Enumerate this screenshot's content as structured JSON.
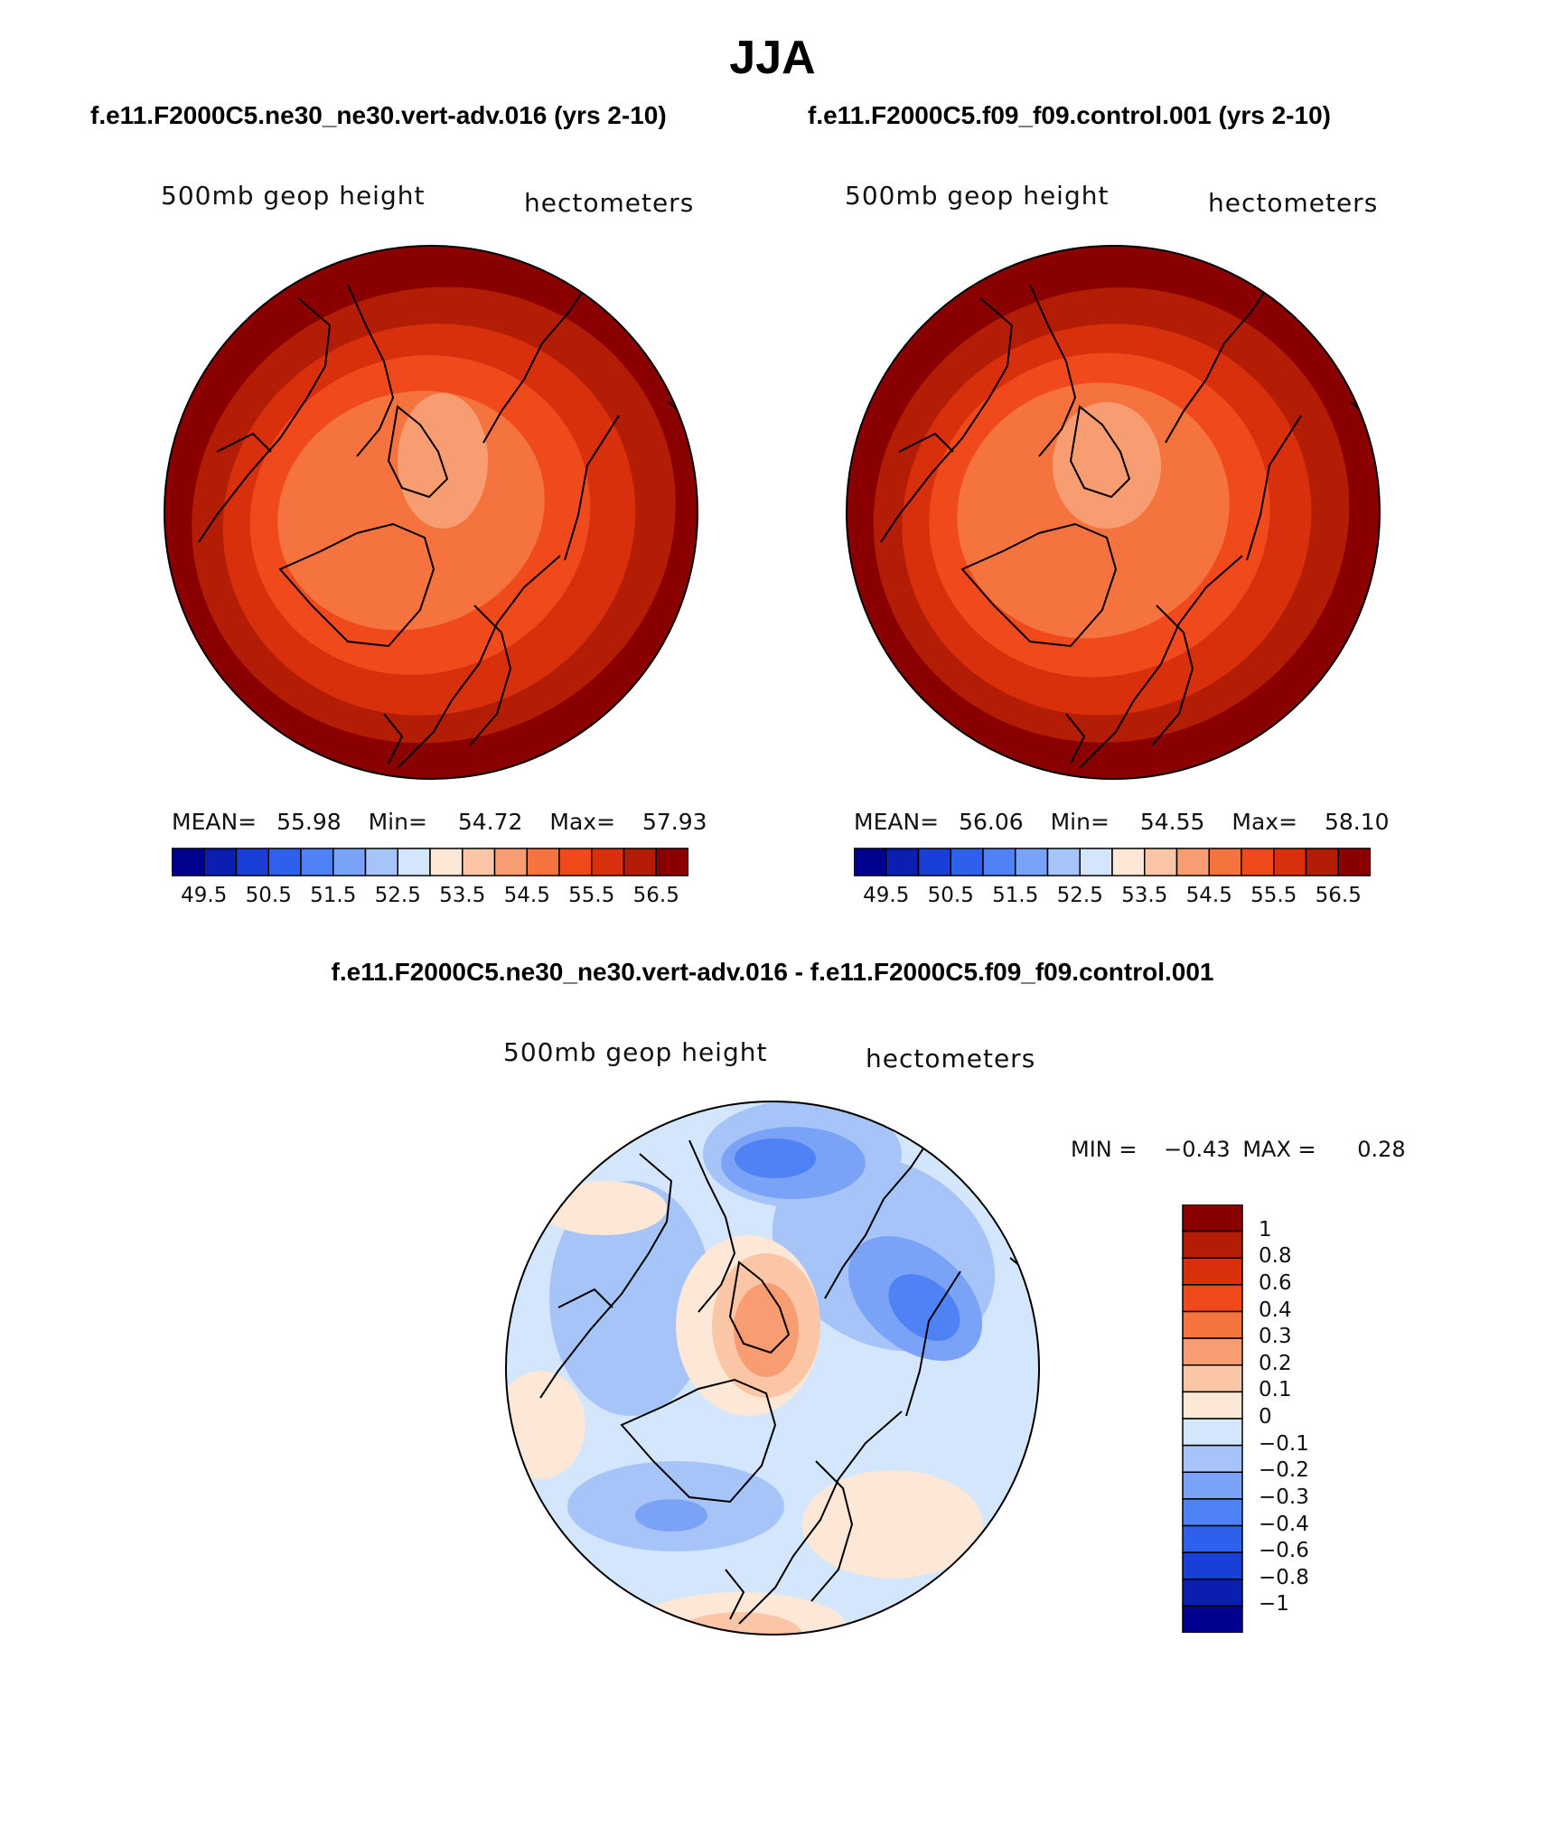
{
  "page_title": "JJA",
  "panels": [
    {
      "case_title": "f.e11.F2000C5.ne30_ne30.vert-adv.016 (yrs 2-10)",
      "variable": "500mb geop height",
      "units": "hectometers",
      "stats": {
        "mean_label": "MEAN=",
        "mean": "55.98",
        "min_label": "Min=",
        "min": "54.72",
        "max_label": "Max=",
        "max": "57.93"
      },
      "colorbar_ticks": [
        "49.5",
        "50.5",
        "51.5",
        "52.5",
        "53.5",
        "54.5",
        "55.5",
        "56.5"
      ]
    },
    {
      "case_title": "f.e11.F2000C5.f09_f09.control.001 (yrs 2-10)",
      "variable": "500mb geop height",
      "units": "hectometers",
      "stats": {
        "mean_label": "MEAN=",
        "mean": "56.06",
        "min_label": "Min=",
        "min": "54.55",
        "max_label": "Max=",
        "max": "58.10"
      },
      "colorbar_ticks": [
        "49.5",
        "50.5",
        "51.5",
        "52.5",
        "53.5",
        "54.5",
        "55.5",
        "56.5"
      ]
    }
  ],
  "diff_panel": {
    "title": "f.e11.F2000C5.ne30_ne30.vert-adv.016 - f.e11.F2000C5.f09_f09.control.001",
    "variable": "500mb geop height",
    "units": "hectometers",
    "stats": {
      "min_label": "MIN =",
      "min": "−0.43",
      "max_label": "MAX =",
      "max": "0.28"
    },
    "colorbar_ticks": [
      "1",
      "0.8",
      "0.6",
      "0.4",
      "0.3",
      "0.2",
      "0.1",
      "0",
      "−0.1",
      "−0.2",
      "−0.3",
      "−0.4",
      "−0.6",
      "−0.8",
      "−1"
    ]
  },
  "colors": {
    "abs_scale": [
      "#00008f",
      "#0a1fb0",
      "#1a3fd6",
      "#2e60ee",
      "#4f82f4",
      "#7aa2f7",
      "#a6c4f8",
      "#d4e6fb",
      "#fde7d6",
      "#fbc6a6",
      "#f89d72",
      "#f5733f",
      "#f04a1c",
      "#d82f0c",
      "#b31d05",
      "#8a0000"
    ],
    "diff_scale": [
      "#8a0000",
      "#b31d05",
      "#d82f0c",
      "#f04a1c",
      "#f5733f",
      "#f89d72",
      "#fbc6a6",
      "#fde7d6",
      "#d4e6fb",
      "#a6c4f8",
      "#7aa2f7",
      "#4f82f4",
      "#2e60ee",
      "#1a3fd6",
      "#0a1fb0",
      "#00008f"
    ]
  }
}
